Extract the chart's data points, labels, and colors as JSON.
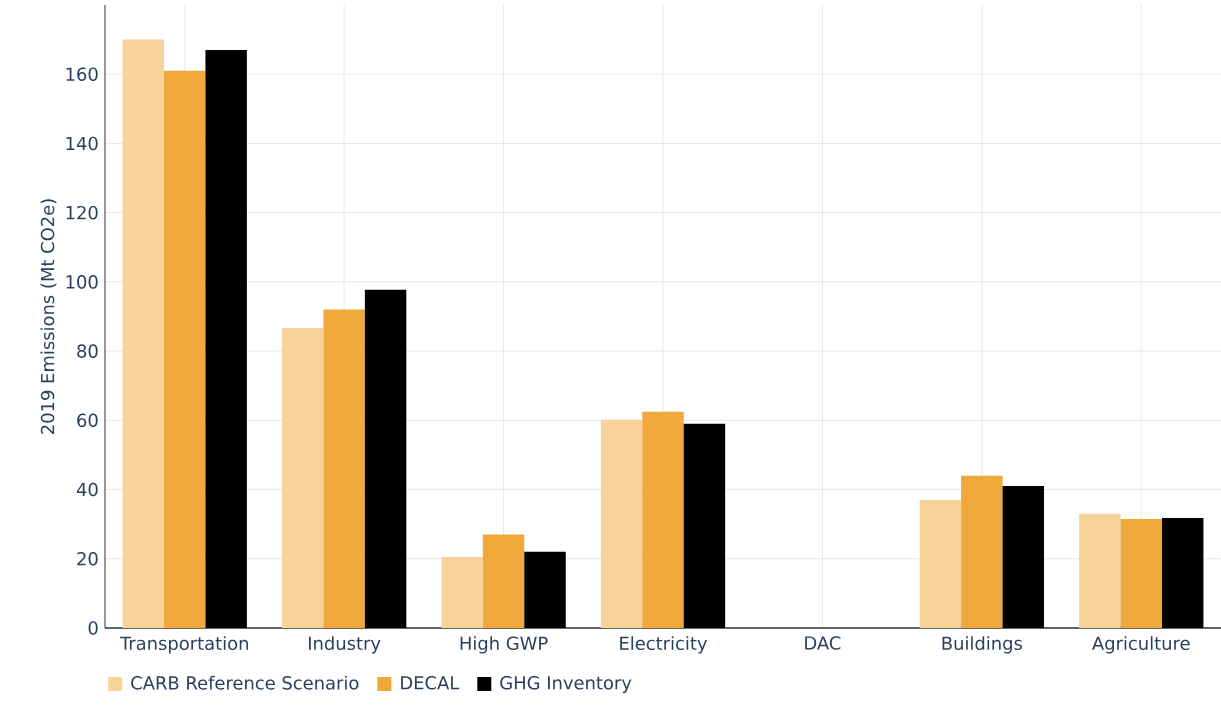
{
  "chart_data": {
    "type": "bar",
    "ylabel": "2019 Emissions (Mt CO2e)",
    "categories": [
      "Transportation",
      "Industry",
      "High GWP",
      "Electricity",
      "DAC",
      "Buildings",
      "Agriculture"
    ],
    "series": [
      {
        "name": "CARB Reference Scenario",
        "color": "#f7d39a",
        "values": [
          170,
          86.7,
          20.5,
          60.2,
          0,
          37,
          33
        ]
      },
      {
        "name": "DECAL",
        "color": "#f0a83a",
        "values": [
          161,
          92,
          27,
          62.5,
          0,
          44,
          31.5
        ]
      },
      {
        "name": "GHG Inventory",
        "color": "#000000",
        "values": [
          167,
          97.7,
          22,
          59,
          0,
          41,
          31.8
        ]
      }
    ],
    "ylim": [
      0,
      180
    ],
    "yticks": [
      0,
      20,
      40,
      60,
      80,
      100,
      120,
      140,
      160
    ],
    "grid": true,
    "legend": "bottom left"
  }
}
